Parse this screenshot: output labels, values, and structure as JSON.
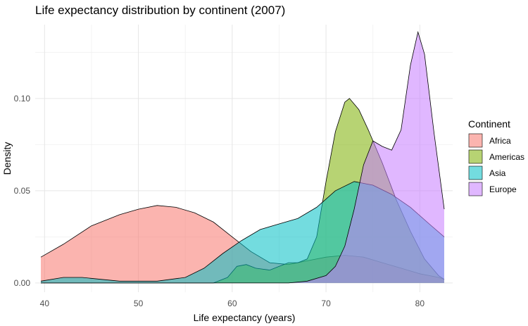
{
  "chart_data": {
    "type": "area",
    "title": "Life expectancy distribution by continent (2007)",
    "xlabel": "Life expectancy (years)",
    "ylabel": "Density",
    "xlim": [
      39.0,
      83.5
    ],
    "ylim": [
      -0.005,
      0.14
    ],
    "x_ticks": [
      40,
      50,
      60,
      70,
      80
    ],
    "y_ticks": [
      0.0,
      0.05,
      0.1
    ],
    "y_tick_labels": [
      "0.00",
      "0.05",
      "0.10"
    ],
    "grid": true,
    "legend_title": "Continent",
    "legend_position": "right",
    "fill_opacity": 0.55,
    "series": [
      {
        "name": "Africa",
        "color": "#F8766D",
        "points": [
          [
            39.6,
            0.014
          ],
          [
            42,
            0.021
          ],
          [
            45,
            0.031
          ],
          [
            48,
            0.037
          ],
          [
            50,
            0.04
          ],
          [
            52,
            0.042
          ],
          [
            54,
            0.041
          ],
          [
            56,
            0.038
          ],
          [
            58,
            0.033
          ],
          [
            60,
            0.025
          ],
          [
            62,
            0.017
          ],
          [
            64,
            0.011
          ],
          [
            66,
            0.01
          ],
          [
            68,
            0.012
          ],
          [
            70,
            0.014
          ],
          [
            72,
            0.015
          ],
          [
            74,
            0.014
          ],
          [
            76,
            0.011
          ],
          [
            78,
            0.008
          ],
          [
            80,
            0.005
          ],
          [
            82,
            0.003
          ],
          [
            82.6,
            0.002
          ]
        ]
      },
      {
        "name": "Americas",
        "color": "#7CAE00",
        "points": [
          [
            39.6,
            0.0
          ],
          [
            58,
            0.0
          ],
          [
            59.5,
            0.003
          ],
          [
            60.5,
            0.009
          ],
          [
            61.5,
            0.01
          ],
          [
            62.5,
            0.008
          ],
          [
            64,
            0.007
          ],
          [
            65,
            0.009
          ],
          [
            66,
            0.011
          ],
          [
            67,
            0.011
          ],
          [
            68,
            0.013
          ],
          [
            69,
            0.025
          ],
          [
            70,
            0.055
          ],
          [
            71,
            0.082
          ],
          [
            72,
            0.098
          ],
          [
            72.5,
            0.1
          ],
          [
            73.5,
            0.094
          ],
          [
            74.5,
            0.083
          ],
          [
            76,
            0.065
          ],
          [
            77.5,
            0.045
          ],
          [
            79,
            0.028
          ],
          [
            80.5,
            0.013
          ],
          [
            82,
            0.004
          ],
          [
            82.6,
            0.002
          ]
        ]
      },
      {
        "name": "Asia",
        "color": "#00BFC4",
        "points": [
          [
            39.6,
            0.001
          ],
          [
            42,
            0.003
          ],
          [
            44,
            0.003
          ],
          [
            46,
            0.002
          ],
          [
            48,
            0.001
          ],
          [
            52,
            0.001
          ],
          [
            55,
            0.003
          ],
          [
            57,
            0.008
          ],
          [
            59,
            0.016
          ],
          [
            61,
            0.023
          ],
          [
            63,
            0.029
          ],
          [
            65,
            0.032
          ],
          [
            67,
            0.035
          ],
          [
            69,
            0.041
          ],
          [
            71,
            0.05
          ],
          [
            73,
            0.055
          ],
          [
            75,
            0.053
          ],
          [
            77,
            0.048
          ],
          [
            79,
            0.041
          ],
          [
            81,
            0.032
          ],
          [
            82.6,
            0.025
          ]
        ]
      },
      {
        "name": "Europe",
        "color": "#C77CFF",
        "points": [
          [
            39.6,
            0.0
          ],
          [
            66,
            0.0
          ],
          [
            68,
            0.001
          ],
          [
            70,
            0.004
          ],
          [
            71,
            0.009
          ],
          [
            72,
            0.02
          ],
          [
            73,
            0.04
          ],
          [
            74,
            0.064
          ],
          [
            75,
            0.077
          ],
          [
            76,
            0.074
          ],
          [
            77,
            0.072
          ],
          [
            78,
            0.083
          ],
          [
            79,
            0.118
          ],
          [
            79.8,
            0.136
          ],
          [
            80.5,
            0.124
          ],
          [
            81.5,
            0.082
          ],
          [
            82.6,
            0.04
          ]
        ]
      }
    ]
  }
}
